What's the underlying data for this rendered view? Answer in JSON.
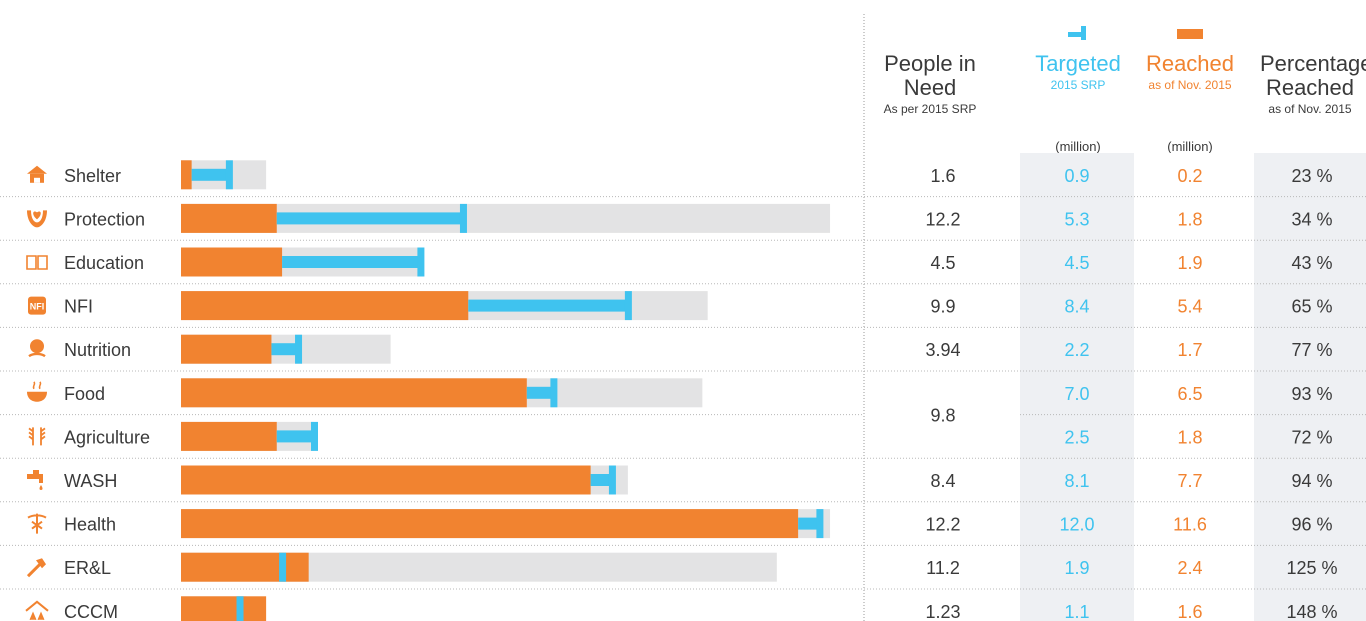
{
  "colors": {
    "targeted": "#3fc3ef",
    "reached": "#f18330",
    "need_bar": "#e3e3e4",
    "cell_bg": "#eef0f3",
    "text": "#3a3a3a",
    "icon": "#f18330"
  },
  "headers": {
    "need": {
      "title": "People in Need",
      "sub": "As per 2015 SRP"
    },
    "targeted": {
      "title": "Targeted",
      "sub": "2015 SRP",
      "unit": "(million)"
    },
    "reached": {
      "title": "Reached",
      "sub": "as of Nov. 2015",
      "unit": "(million)"
    },
    "percentage": {
      "title": "Percentage Reached",
      "sub": "as of Nov. 2015"
    }
  },
  "chart_data": {
    "type": "bar",
    "orientation": "horizontal",
    "x_unit": "million",
    "sectors": [
      {
        "name": "Shelter",
        "icon": "house-icon",
        "need": "1.6",
        "targeted": 0.9,
        "reached": 0.2,
        "percentage": "23 %",
        "targeted_label": "0.9",
        "reached_label": "0.2"
      },
      {
        "name": "Protection",
        "icon": "hands-heart-icon",
        "need": "12.2",
        "targeted": 5.3,
        "reached": 1.8,
        "percentage": "34 %",
        "targeted_label": "5.3",
        "reached_label": "1.8"
      },
      {
        "name": "Education",
        "icon": "open-book-icon",
        "need": "4.5",
        "targeted": 4.5,
        "reached": 1.9,
        "percentage": "43 %",
        "targeted_label": "4.5",
        "reached_label": "1.9"
      },
      {
        "name": "NFI",
        "icon": "nfi-icon",
        "need": "9.9",
        "targeted": 8.4,
        "reached": 5.4,
        "percentage": "65 %",
        "targeted_label": "8.4",
        "reached_label": "5.4"
      },
      {
        "name": "Nutrition",
        "icon": "baby-icon",
        "need": "3.94",
        "targeted": 2.2,
        "reached": 1.7,
        "percentage": "77 %",
        "targeted_label": "2.2",
        "reached_label": "1.7"
      },
      {
        "name": "Food",
        "icon": "bowl-icon",
        "need": "9.8",
        "targeted": 7.0,
        "reached": 6.5,
        "percentage": "93 %",
        "targeted_label": "7.0",
        "reached_label": "6.5"
      },
      {
        "name": "Agriculture",
        "icon": "wheat-icon",
        "need": "9.8",
        "targeted": 2.5,
        "reached": 1.8,
        "percentage": "72 %",
        "targeted_label": "2.5",
        "reached_label": "1.8"
      },
      {
        "name": "WASH",
        "icon": "water-tap-icon",
        "need": "8.4",
        "targeted": 8.1,
        "reached": 7.7,
        "percentage": "94 %",
        "targeted_label": "8.1",
        "reached_label": "7.7"
      },
      {
        "name": "Health",
        "icon": "caduceus-icon",
        "need": "12.2",
        "targeted": 12.0,
        "reached": 11.6,
        "percentage": "96 %",
        "targeted_label": "12.0",
        "reached_label": "11.6"
      },
      {
        "name": "ER&L",
        "icon": "hammer-icon",
        "need": "11.2",
        "targeted": 1.9,
        "reached": 2.4,
        "percentage": "125 %",
        "targeted_label": "1.9",
        "reached_label": "2.4"
      },
      {
        "name": "CCCM",
        "icon": "camp-icon",
        "need": "1.23",
        "targeted": 1.1,
        "reached": 1.6,
        "percentage": "148 %",
        "targeted_label": "1.1",
        "reached_label": "1.6"
      }
    ],
    "need_bar_values": [
      1.6,
      12.2,
      4.5,
      9.9,
      3.94,
      9.8,
      2.5,
      8.4,
      12.2,
      11.2,
      1.23
    ],
    "shared_need_rows": [
      5,
      6
    ]
  }
}
